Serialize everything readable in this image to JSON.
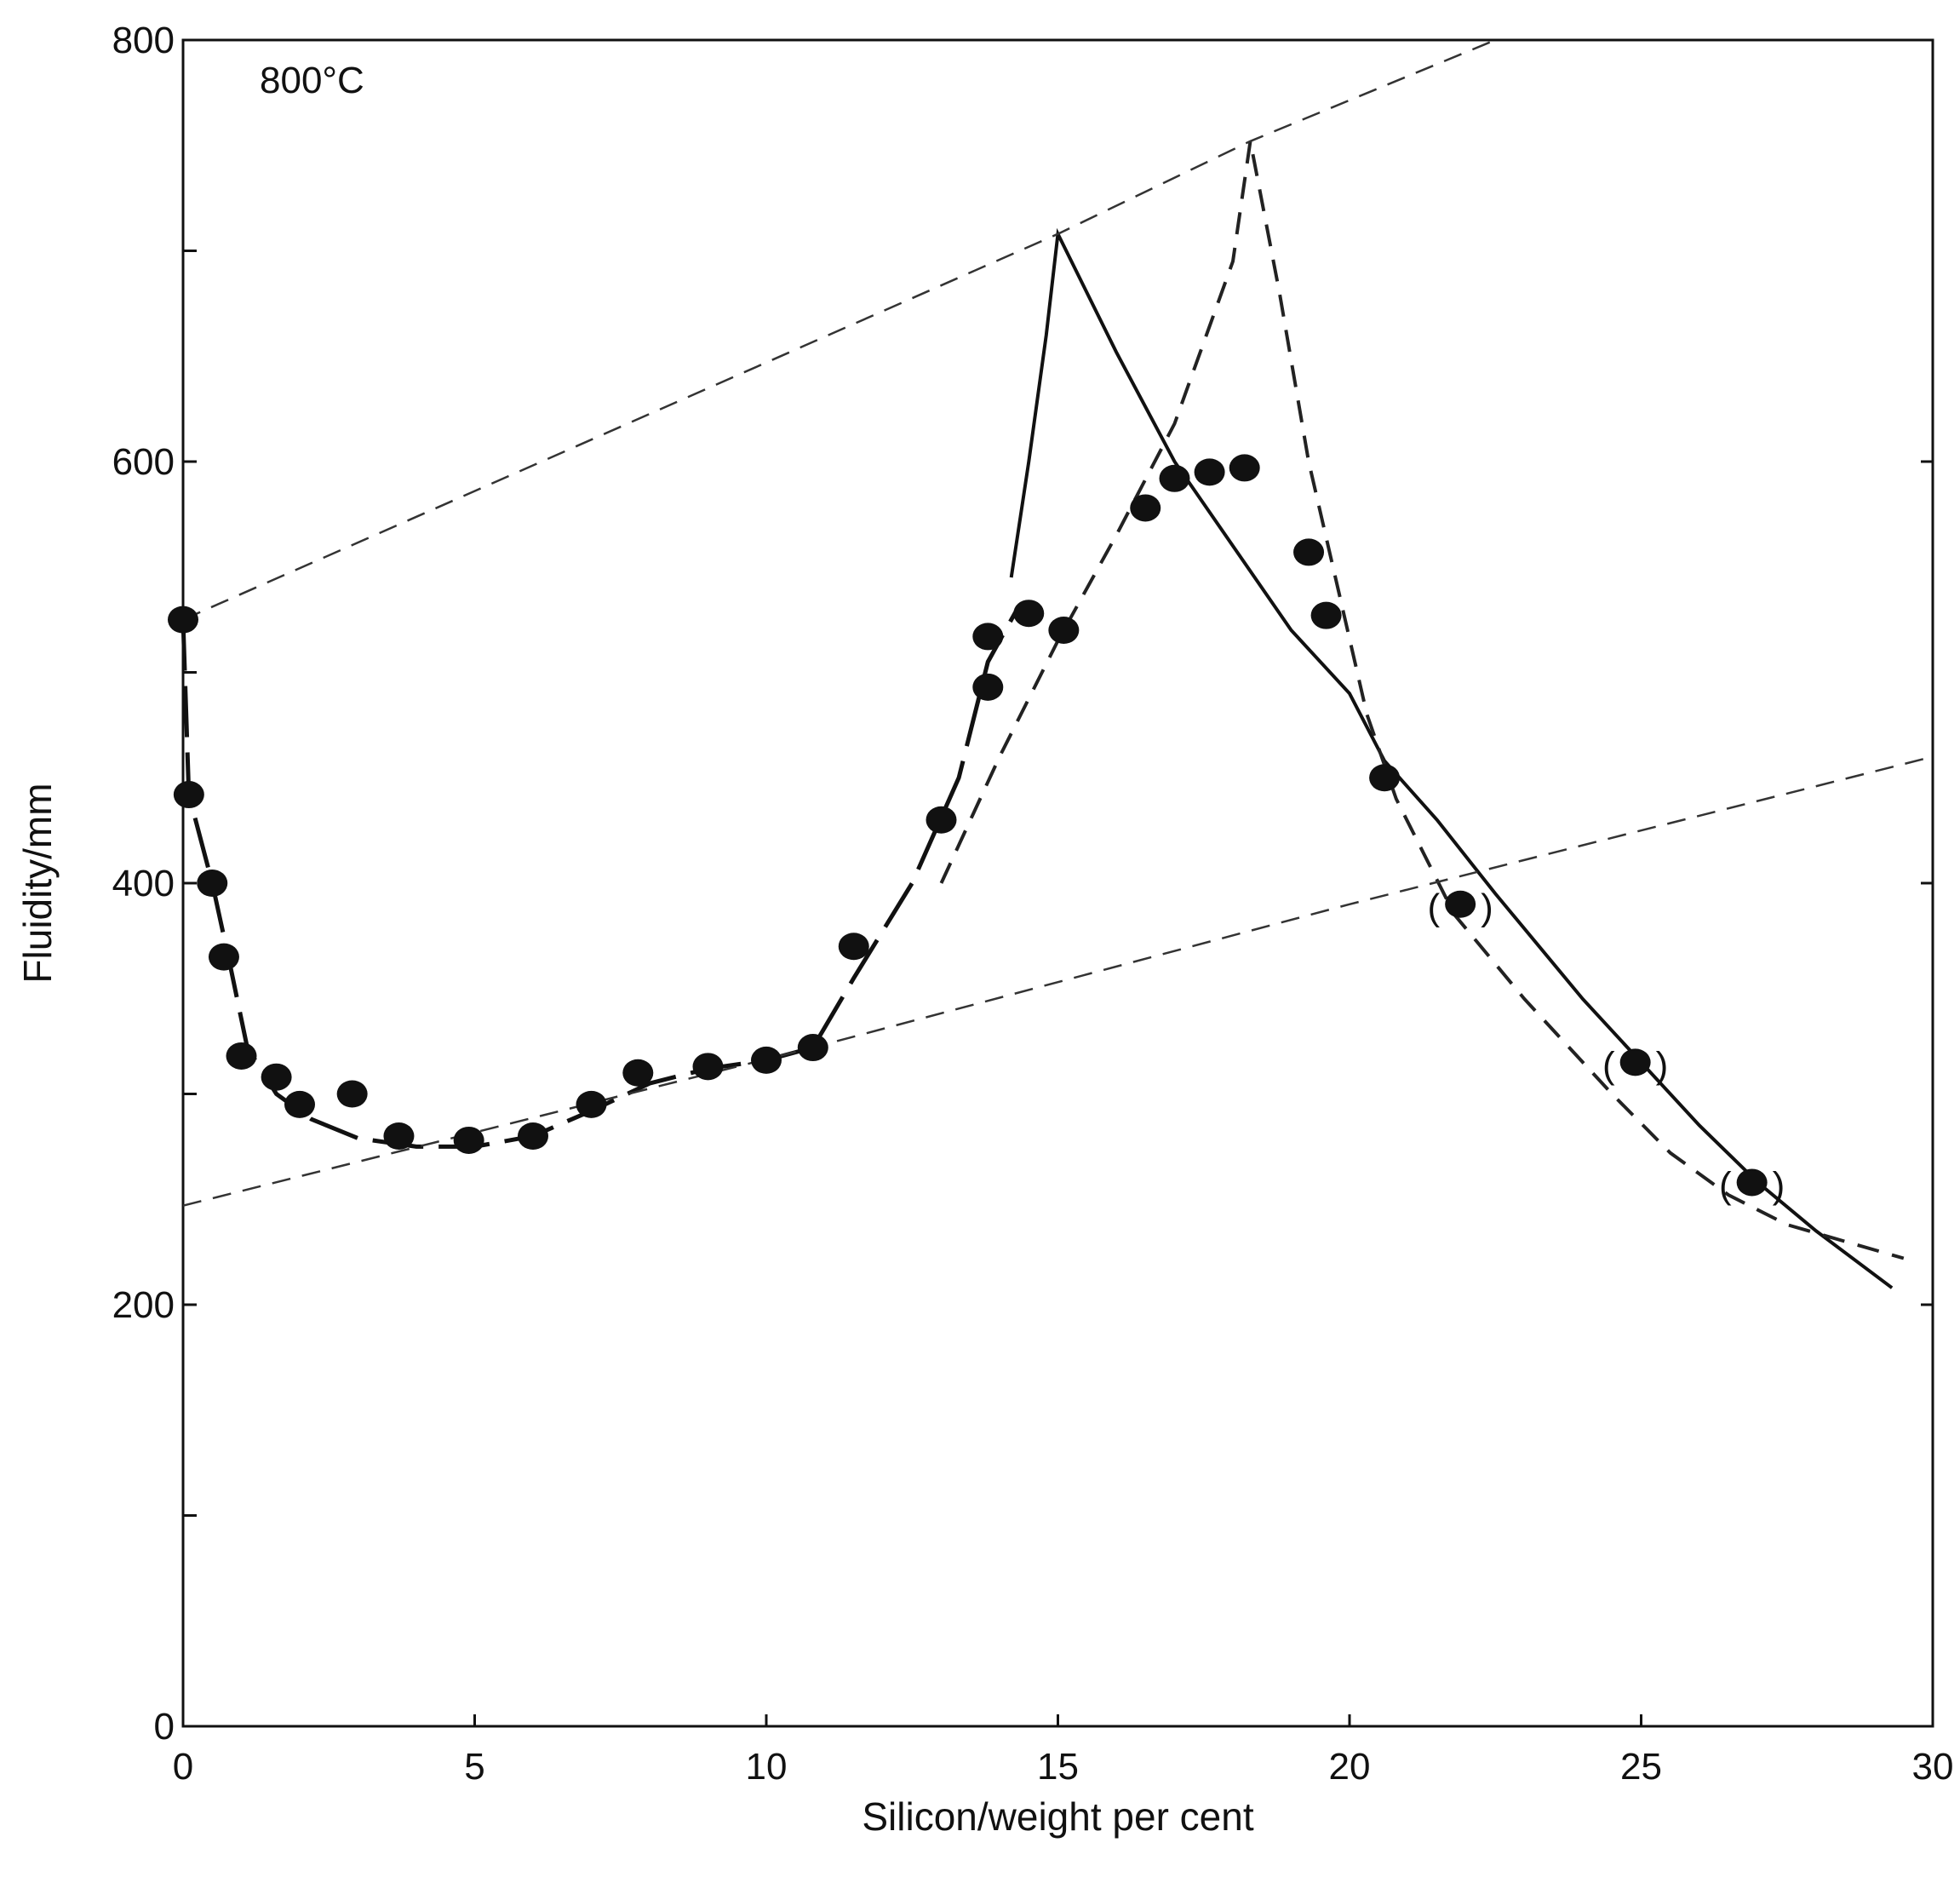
{
  "chart_data": {
    "type": "scatter",
    "annotation": "800°C",
    "xlabel": "Silicon/weight per cent",
    "ylabel": "Fluidity/mm",
    "xlim": [
      0,
      30
    ],
    "ylim": [
      0,
      800
    ],
    "x_ticks": [
      0,
      5,
      10,
      15,
      20,
      25,
      30
    ],
    "y_ticks": [
      0,
      200,
      400,
      600,
      800
    ],
    "y_minor_ticks": [
      100,
      300,
      500,
      700
    ],
    "grid": false,
    "series": [
      {
        "style": "points",
        "points": [
          {
            "x": 0,
            "y": 525
          },
          {
            "x": 0.1,
            "y": 442
          },
          {
            "x": 0.5,
            "y": 400
          },
          {
            "x": 0.7,
            "y": 365
          },
          {
            "x": 1.0,
            "y": 318
          },
          {
            "x": 1.6,
            "y": 308
          },
          {
            "x": 2.0,
            "y": 295
          },
          {
            "x": 2.9,
            "y": 300
          },
          {
            "x": 3.7,
            "y": 280
          },
          {
            "x": 4.9,
            "y": 278
          },
          {
            "x": 6.0,
            "y": 280
          },
          {
            "x": 7.0,
            "y": 295
          },
          {
            "x": 7.8,
            "y": 310
          },
          {
            "x": 9.0,
            "y": 313
          },
          {
            "x": 10.0,
            "y": 316
          },
          {
            "x": 10.8,
            "y": 322
          },
          {
            "x": 11.5,
            "y": 370
          },
          {
            "x": 13.0,
            "y": 430
          },
          {
            "x": 13.8,
            "y": 493
          },
          {
            "x": 13.8,
            "y": 517
          },
          {
            "x": 14.5,
            "y": 528
          },
          {
            "x": 15.1,
            "y": 520
          },
          {
            "x": 16.5,
            "y": 578
          },
          {
            "x": 17.0,
            "y": 592
          },
          {
            "x": 17.6,
            "y": 595
          },
          {
            "x": 18.2,
            "y": 597
          },
          {
            "x": 19.3,
            "y": 557
          },
          {
            "x": 19.6,
            "y": 527
          },
          {
            "x": 20.6,
            "y": 450
          },
          {
            "x": 21.9,
            "y": 390,
            "bracketed": true
          },
          {
            "x": 24.9,
            "y": 315,
            "bracketed": true
          },
          {
            "x": 26.9,
            "y": 258,
            "bracketed": true
          }
        ]
      },
      {
        "style": "long-dash",
        "points": [
          [
            0,
            525
          ],
          [
            0.1,
            442
          ],
          [
            0.5,
            400
          ],
          [
            0.8,
            362
          ],
          [
            1.1,
            322
          ],
          [
            1.6,
            300
          ],
          [
            2.2,
            288
          ],
          [
            3.0,
            279
          ],
          [
            4.0,
            275
          ],
          [
            5.0,
            275
          ],
          [
            6.0,
            280
          ],
          [
            7.0,
            292
          ],
          [
            8.0,
            305
          ],
          [
            9.0,
            312
          ],
          [
            10.0,
            316
          ],
          [
            10.8,
            322
          ],
          [
            11.5,
            355
          ],
          [
            12.5,
            400
          ],
          [
            13.3,
            450
          ],
          [
            13.8,
            505
          ],
          [
            14.3,
            530
          ]
        ]
      },
      {
        "style": "solid",
        "points": [
          [
            14.2,
            545
          ],
          [
            14.5,
            600
          ],
          [
            14.8,
            660
          ],
          [
            15.0,
            708
          ],
          [
            16.0,
            652
          ],
          [
            17.0,
            600
          ],
          [
            18.0,
            560
          ],
          [
            19.0,
            520
          ],
          [
            20.0,
            490
          ],
          [
            20.6,
            458
          ],
          [
            21.5,
            430
          ],
          [
            22.5,
            395
          ],
          [
            24.0,
            345
          ],
          [
            25.0,
            315
          ],
          [
            26.0,
            285
          ],
          [
            27.0,
            258
          ],
          [
            28.0,
            235
          ],
          [
            29.3,
            208
          ]
        ]
      },
      {
        "style": "dashed",
        "points": [
          [
            13.0,
            400
          ],
          [
            14.0,
            460
          ],
          [
            15.0,
            515
          ],
          [
            16.0,
            565
          ],
          [
            17.0,
            618
          ],
          [
            18.0,
            695
          ],
          [
            18.3,
            752
          ],
          [
            18.8,
            680
          ],
          [
            19.3,
            600
          ],
          [
            19.8,
            540
          ],
          [
            20.3,
            480
          ],
          [
            20.8,
            440
          ],
          [
            21.8,
            385
          ],
          [
            23.0,
            345
          ],
          [
            24.5,
            300
          ],
          [
            25.5,
            272
          ],
          [
            26.5,
            252
          ],
          [
            27.5,
            238
          ],
          [
            28.5,
            230
          ],
          [
            29.5,
            222
          ]
        ]
      },
      {
        "style": "thin-dashed",
        "points": [
          [
            0,
            525
          ],
          [
            15.0,
            708
          ],
          [
            18.3,
            752
          ],
          [
            22.5,
            800
          ]
        ]
      },
      {
        "style": "thin-dashed",
        "points": [
          [
            0,
            247
          ],
          [
            10.8,
            322
          ],
          [
            20.0,
            390
          ],
          [
            30,
            460
          ]
        ]
      }
    ]
  }
}
